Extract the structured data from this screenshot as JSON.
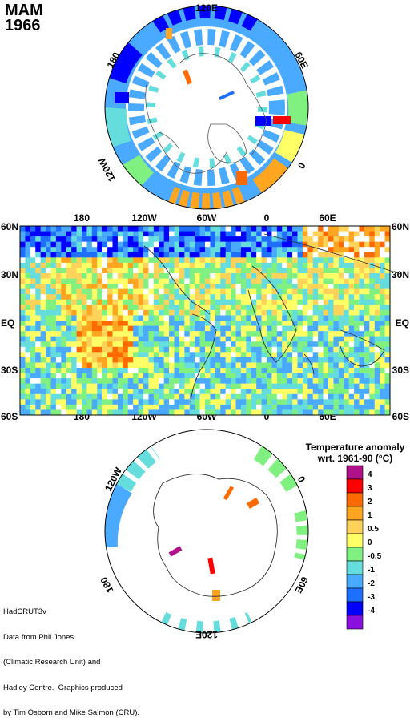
{
  "title": {
    "season": "MAM",
    "year": "1966"
  },
  "north_polar": {
    "labels": {
      "top": "120E",
      "right": "60E",
      "left": "180",
      "bottom_left": "120W",
      "bottom_right": "0"
    }
  },
  "main_map": {
    "top_ticks": [
      "180",
      "120W",
      "60W",
      "0",
      "60E"
    ],
    "bottom_ticks": [
      "180",
      "120W",
      "60W",
      "0",
      "60E"
    ],
    "left_ticks": [
      "60N",
      "30N",
      "EQ",
      "30S",
      "60S"
    ],
    "right_ticks": [
      "60N",
      "30N",
      "EQ",
      "30S",
      "60S"
    ]
  },
  "south_polar": {
    "labels": {
      "top_left": "120W",
      "top_right": "0",
      "bottom": "120E",
      "left": "180",
      "right": "60E"
    }
  },
  "legend": {
    "title_line1": "Temperature anomaly",
    "title_line2": "wrt. 1961-90  (°C)",
    "entries": [
      {
        "label": "4",
        "color": "#b0108a"
      },
      {
        "label": "3",
        "color": "#ff0000"
      },
      {
        "label": "2",
        "color": "#ff6a00"
      },
      {
        "label": "1",
        "color": "#ffa520"
      },
      {
        "label": "0.5",
        "color": "#ffd35a"
      },
      {
        "label": "0",
        "color": "#ffff66"
      },
      {
        "label": "-0.5",
        "color": "#80f080"
      },
      {
        "label": "-1",
        "color": "#66dddd"
      },
      {
        "label": "-2",
        "color": "#4aaaff"
      },
      {
        "label": "-3",
        "color": "#1e6eff"
      },
      {
        "label": "-4",
        "color": "#0000ff"
      },
      {
        "label": "",
        "color": "#8a10e0"
      }
    ]
  },
  "credit": {
    "line1": "HadCRUT3v",
    "line2": "Data from Phil Jones",
    "line3": "(Climatic Research Unit) and",
    "line4": "Hadley Centre.  Graphics produced",
    "line5": "by Tim Osborn and Mike Salmon (CRU)."
  }
}
